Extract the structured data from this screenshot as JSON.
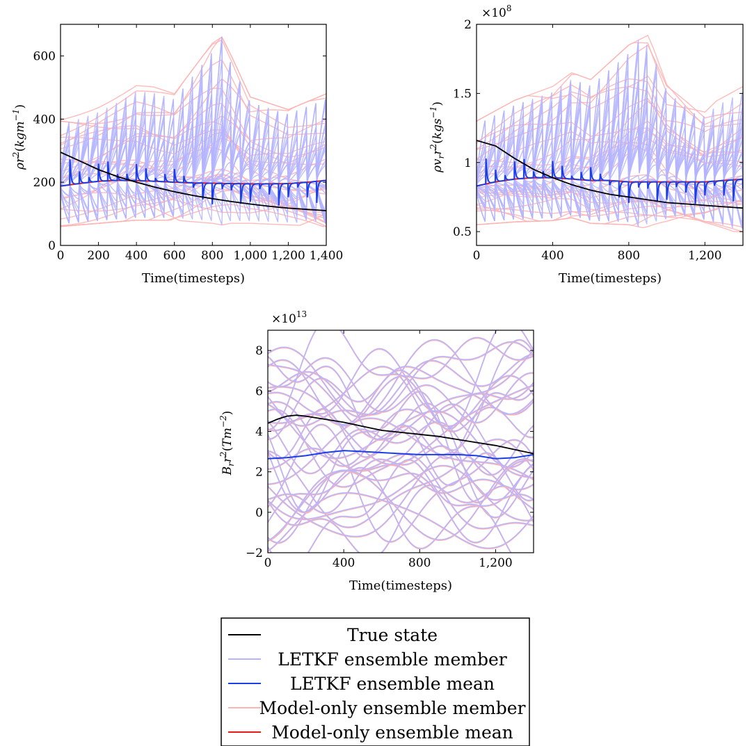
{
  "chart_data": [
    {
      "type": "line",
      "panel": "top-left",
      "xlabel": "Time(timesteps)",
      "ylabel": "ρr²(kgm⁻¹)",
      "ylabel_parts": {
        "base": "ρr",
        "unit": "kgm",
        "unit_exp": "−1"
      },
      "exponent_label": "",
      "xlim": [
        0,
        1400
      ],
      "ylim": [
        0,
        700
      ],
      "xticks": [
        0,
        200,
        400,
        600,
        800,
        1000,
        1200,
        1400
      ],
      "xtick_labels": [
        "0",
        "200",
        "400",
        "600",
        "800",
        "1,000",
        "1,200",
        "1,400"
      ],
      "yticks": [
        0,
        200,
        400,
        600
      ],
      "ytick_labels": [
        "0",
        "200",
        "400",
        "600"
      ],
      "grid": false,
      "series": [
        {
          "name": "True state",
          "x": [
            0,
            100,
            200,
            300,
            400,
            500,
            600,
            700,
            800,
            900,
            1000,
            1100,
            1200,
            1300,
            1400
          ],
          "y": [
            295,
            268,
            240,
            218,
            200,
            184,
            170,
            158,
            148,
            139,
            131,
            124,
            118,
            114,
            110
          ]
        },
        {
          "name": "LETKF ensemble mean",
          "x": [
            0,
            100,
            200,
            300,
            400,
            500,
            600,
            700,
            800,
            900,
            1000,
            1100,
            1200,
            1300,
            1400
          ],
          "y": [
            188,
            196,
            203,
            206,
            205,
            203,
            200,
            198,
            197,
            196,
            195,
            195,
            196,
            200,
            206
          ]
        },
        {
          "name": "Model-only ensemble mean",
          "x": [
            0,
            100,
            200,
            300,
            400,
            500,
            600,
            700,
            800,
            900,
            1000,
            1100,
            1200,
            1300,
            1400
          ],
          "y": [
            188,
            196,
            203,
            206,
            205,
            203,
            200,
            198,
            197,
            196,
            195,
            195,
            196,
            200,
            206
          ]
        }
      ],
      "model_only_member_envelope": {
        "x": [
          0,
          200,
          400,
          600,
          800,
          850,
          900,
          1000,
          1200,
          1400
        ],
        "upper": [
          430,
          470,
          520,
          480,
          640,
          660,
          600,
          470,
          430,
          480
        ],
        "lower": [
          60,
          70,
          80,
          80,
          70,
          65,
          70,
          70,
          65,
          60
        ]
      }
    },
    {
      "type": "line",
      "panel": "top-right",
      "xlabel": "Time(timesteps)",
      "ylabel": "ρvᵣr²(kgs⁻¹)",
      "ylabel_parts": {
        "base": "ρv",
        "sub": "r",
        "base2": "r",
        "unit": "kgs",
        "unit_exp": "−1"
      },
      "exponent_label": "×10⁸",
      "exponent_parts": {
        "base": "×10",
        "exp": "8"
      },
      "xlim": [
        0,
        1400
      ],
      "ylim": [
        0.4,
        2.0
      ],
      "xticks": [
        0,
        400,
        800,
        1200
      ],
      "xtick_labels": [
        "0",
        "400",
        "800",
        "1,200"
      ],
      "yticks": [
        0.5,
        1.0,
        1.5,
        2.0
      ],
      "ytick_labels": [
        "0.5",
        "1",
        "1.5",
        "2"
      ],
      "grid": false,
      "series": [
        {
          "name": "True state",
          "x": [
            0,
            100,
            200,
            300,
            400,
            500,
            600,
            700,
            800,
            900,
            1000,
            1100,
            1200,
            1300,
            1400
          ],
          "y": [
            1.16,
            1.12,
            1.03,
            0.95,
            0.89,
            0.84,
            0.8,
            0.77,
            0.75,
            0.73,
            0.71,
            0.7,
            0.69,
            0.68,
            0.67
          ]
        },
        {
          "name": "LETKF ensemble mean",
          "x": [
            0,
            100,
            200,
            300,
            400,
            500,
            600,
            700,
            800,
            900,
            1000,
            1100,
            1200,
            1300,
            1400
          ],
          "y": [
            0.83,
            0.86,
            0.88,
            0.89,
            0.89,
            0.88,
            0.87,
            0.87,
            0.86,
            0.86,
            0.86,
            0.86,
            0.86,
            0.87,
            0.88
          ]
        },
        {
          "name": "Model-only ensemble mean",
          "x": [
            0,
            100,
            200,
            300,
            400,
            500,
            600,
            700,
            800,
            900,
            1000,
            1100,
            1200,
            1300,
            1400
          ],
          "y": [
            0.83,
            0.86,
            0.88,
            0.89,
            0.89,
            0.88,
            0.87,
            0.87,
            0.86,
            0.86,
            0.86,
            0.86,
            0.86,
            0.87,
            0.88
          ]
        }
      ],
      "model_only_member_envelope": {
        "x": [
          0,
          200,
          400,
          500,
          600,
          800,
          900,
          1000,
          1200,
          1400
        ],
        "upper": [
          1.3,
          1.45,
          1.55,
          1.65,
          1.6,
          1.85,
          1.92,
          1.6,
          1.4,
          1.55
        ],
        "lower": [
          0.55,
          0.57,
          0.58,
          0.6,
          0.56,
          0.55,
          0.52,
          0.51,
          0.5,
          0.5
        ]
      }
    },
    {
      "type": "line",
      "panel": "bottom",
      "xlabel": "Time(timesteps)",
      "ylabel": "Bᵣr²(Tm⁻²)",
      "ylabel_parts": {
        "base": "B",
        "sub": "r",
        "base2": "r",
        "unit": "Tm",
        "unit_exp": "−2"
      },
      "exponent_label": "×10¹³",
      "exponent_parts": {
        "base": "×10",
        "exp": "13"
      },
      "xlim": [
        0,
        1400
      ],
      "ylim": [
        -2,
        9
      ],
      "xticks": [
        0,
        400,
        800,
        1200
      ],
      "xtick_labels": [
        "0",
        "400",
        "800",
        "1,200"
      ],
      "yticks": [
        -2,
        0,
        2,
        4,
        6,
        8
      ],
      "ytick_labels": [
        "−2",
        "0",
        "2",
        "4",
        "6",
        "8"
      ],
      "grid": false,
      "series": [
        {
          "name": "True state",
          "x": [
            0,
            50,
            100,
            150,
            200,
            300,
            400,
            500,
            600,
            700,
            800,
            900,
            1000,
            1100,
            1200,
            1300,
            1400
          ],
          "y": [
            4.4,
            4.6,
            4.75,
            4.8,
            4.75,
            4.6,
            4.45,
            4.25,
            4.05,
            3.95,
            3.85,
            3.75,
            3.6,
            3.45,
            3.3,
            3.1,
            2.9
          ]
        },
        {
          "name": "LETKF ensemble mean",
          "x": [
            0,
            100,
            200,
            300,
            400,
            500,
            600,
            700,
            800,
            900,
            1000,
            1100,
            1200,
            1300,
            1400
          ],
          "y": [
            2.65,
            2.7,
            2.8,
            2.95,
            3.05,
            3.0,
            2.95,
            2.9,
            2.85,
            2.85,
            2.85,
            2.8,
            2.65,
            2.7,
            2.85
          ]
        }
      ]
    }
  ],
  "legend": {
    "placement": "bottom-center",
    "entries": [
      {
        "label": "True state",
        "color": "#000000"
      },
      {
        "label": "LETKF ensemble member",
        "color": "#b4b4ff"
      },
      {
        "label": "LETKF ensemble mean",
        "color": "#1a3fe6"
      },
      {
        "label": "Model-only ensemble member",
        "color": "#ffb4b4"
      },
      {
        "label": "Model-only ensemble mean",
        "color": "#e61a1a"
      }
    ]
  },
  "colors": {
    "true_state": "#000000",
    "letkf_member": "#b4b4ff",
    "letkf_mean": "#1a3fe6",
    "model_member": "#ffb4b4",
    "model_mean": "#e61a1a"
  }
}
